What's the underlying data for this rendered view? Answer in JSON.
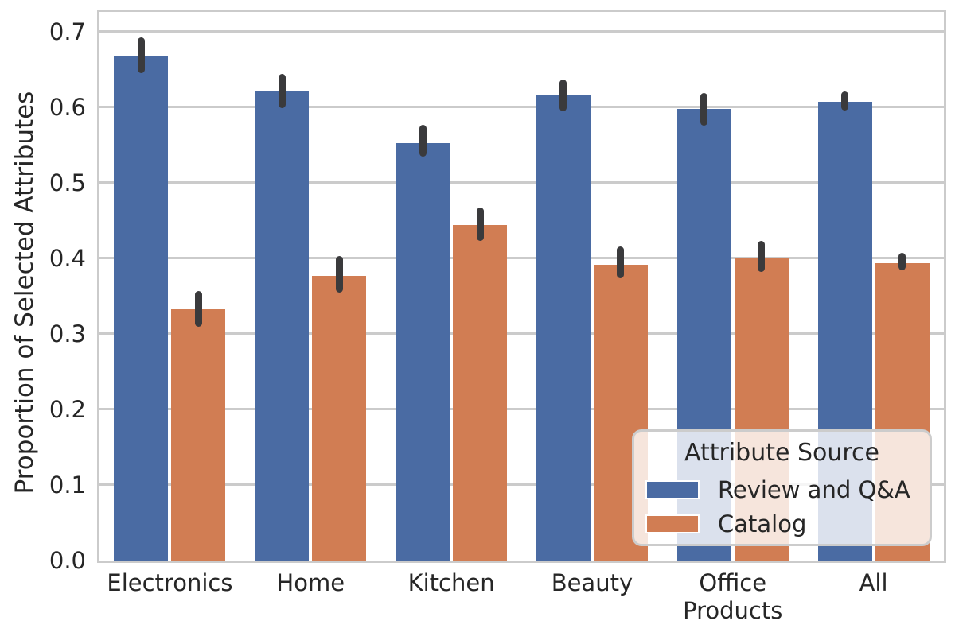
{
  "chart_data": {
    "type": "bar",
    "title": "",
    "xlabel": "",
    "ylabel": "Proportion of Selected Attributes",
    "categories": [
      "Electronics",
      "Home",
      "Kitchen",
      "Beauty",
      "Office Products",
      "All"
    ],
    "series": [
      {
        "name": "Review and Q&A",
        "color": "#4A6BA3",
        "values": [
          0.667,
          0.621,
          0.552,
          0.615,
          0.597,
          0.607
        ],
        "err_low": [
          0.645,
          0.599,
          0.534,
          0.594,
          0.575,
          0.595
        ],
        "err_high": [
          0.692,
          0.644,
          0.576,
          0.636,
          0.619,
          0.621
        ]
      },
      {
        "name": "Catalog",
        "color": "#D17D53",
        "values": [
          0.332,
          0.377,
          0.444,
          0.391,
          0.401,
          0.393
        ],
        "err_low": [
          0.309,
          0.354,
          0.423,
          0.373,
          0.382,
          0.384
        ],
        "err_high": [
          0.357,
          0.403,
          0.467,
          0.415,
          0.423,
          0.407
        ]
      }
    ],
    "yticks": [
      {
        "label": "0.0",
        "value": 0.0
      },
      {
        "label": "0.1",
        "value": 0.1
      },
      {
        "label": "0.2",
        "value": 0.2
      },
      {
        "label": "0.3",
        "value": 0.3
      },
      {
        "label": "0.4",
        "value": 0.4
      },
      {
        "label": "0.5",
        "value": 0.5
      },
      {
        "label": "0.6",
        "value": 0.6
      },
      {
        "label": "0.7",
        "value": 0.7
      }
    ],
    "ylim": [
      0,
      0.726
    ],
    "grid": true,
    "grid_color": "#cbcbcb",
    "error_bar_color": "#3a3a3c",
    "text_color": "#262626",
    "legend": {
      "title": "Attribute Source",
      "position": "lower right",
      "entries": [
        {
          "label": "Review and Q&A",
          "color": "#4A6BA3"
        },
        {
          "label": "Catalog",
          "color": "#D17D53"
        }
      ]
    }
  }
}
